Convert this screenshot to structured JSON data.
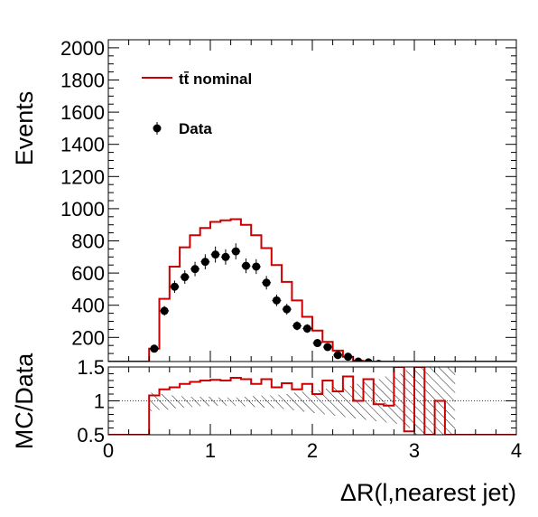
{
  "chart_data": [
    {
      "type": "histogram",
      "panel": "main",
      "xlabel": "ΔR(l,nearest jet)",
      "ylabel": "Events",
      "xlim": [
        0,
        4
      ],
      "ylim": [
        50,
        2050
      ],
      "yticks": [
        200,
        400,
        600,
        800,
        1000,
        1200,
        1400,
        1600,
        1800,
        2000
      ],
      "bin_edges": [
        0.0,
        0.4,
        0.5,
        0.6,
        0.7,
        0.8,
        0.9,
        1.0,
        1.1,
        1.2,
        1.3,
        1.4,
        1.5,
        1.6,
        1.7,
        1.8,
        1.9,
        2.0,
        2.1,
        2.2,
        2.3,
        2.4,
        2.5,
        2.6,
        2.7,
        2.8,
        2.9,
        3.0,
        3.1,
        3.2,
        3.3,
        3.4,
        4.0
      ],
      "legend_position": "top-left",
      "series": [
        {
          "name": "tt̄ nominal",
          "kind": "step",
          "color": "#cc0000",
          "values": [
            0,
            130,
            440,
            640,
            760,
            835,
            880,
            918,
            928,
            935,
            900,
            835,
            755,
            650,
            545,
            430,
            328,
            242,
            172,
            118,
            80,
            55,
            38,
            27,
            20,
            14,
            10,
            6,
            4,
            3,
            2,
            0
          ]
        },
        {
          "name": "Data",
          "kind": "points",
          "color": "#000000",
          "x": [
            0.45,
            0.55,
            0.65,
            0.75,
            0.85,
            0.95,
            1.05,
            1.15,
            1.25,
            1.35,
            1.45,
            1.55,
            1.65,
            1.75,
            1.85,
            1.95,
            2.05,
            2.15,
            2.25,
            2.35,
            2.45,
            2.55,
            2.65,
            2.75,
            2.85,
            2.95,
            3.05,
            3.25,
            3.35
          ],
          "y": [
            130,
            365,
            515,
            575,
            625,
            670,
            715,
            700,
            735,
            645,
            640,
            540,
            430,
            375,
            272,
            255,
            165,
            140,
            90,
            80,
            50,
            45,
            35,
            25,
            15,
            15,
            15,
            5,
            5
          ],
          "yerr": [
            20,
            30,
            38,
            42,
            45,
            47,
            50,
            48,
            50,
            46,
            46,
            42,
            36,
            34,
            28,
            27,
            20,
            18,
            14,
            13,
            10,
            10,
            9,
            8,
            6,
            6,
            6,
            4,
            4
          ]
        }
      ]
    },
    {
      "type": "ratio",
      "panel": "ratio",
      "xlabel": "ΔR(l,nearest jet)",
      "ylabel": "MC/Data",
      "xlim": [
        0,
        4
      ],
      "ylim": [
        0.5,
        1.5
      ],
      "xticks": [
        0,
        1,
        2,
        3,
        4
      ],
      "yticks": [
        0.5,
        1,
        1.5
      ],
      "yticklabels": [
        "0.5",
        "1",
        "1.5"
      ],
      "reference_line": 1,
      "bin_edges": [
        0.0,
        0.4,
        0.5,
        0.6,
        0.7,
        0.8,
        0.9,
        1.0,
        1.1,
        1.2,
        1.3,
        1.4,
        1.5,
        1.6,
        1.7,
        1.8,
        1.9,
        2.0,
        2.1,
        2.2,
        2.3,
        2.4,
        2.5,
        2.6,
        2.7,
        2.8,
        2.9,
        3.0,
        3.1,
        3.2,
        3.3,
        3.4,
        4.0
      ],
      "series": [
        {
          "name": "MC/Data",
          "kind": "step",
          "color": "#cc0000",
          "values": [
            0.5,
            1.08,
            1.17,
            1.2,
            1.25,
            1.28,
            1.3,
            1.31,
            1.3,
            1.34,
            1.32,
            1.25,
            1.32,
            1.2,
            1.26,
            1.17,
            1.25,
            1.1,
            1.3,
            1.14,
            1.36,
            1.0,
            1.32,
            0.95,
            0.93,
            1.5,
            0.55,
            1.5,
            0.5,
            1.0,
            0.5,
            0.5
          ]
        },
        {
          "name": "uncertainty",
          "kind": "band",
          "color": "#000000",
          "from": 0.4,
          "to": 3.4,
          "lower": [
            0.85,
            0.87,
            0.89,
            0.9,
            0.91,
            0.92,
            0.93,
            0.93,
            0.93,
            0.92,
            0.91,
            0.9,
            0.89,
            0.88,
            0.86,
            0.84,
            0.82,
            0.8,
            0.78,
            0.76,
            0.74,
            0.72,
            0.7,
            0.68,
            0.66,
            0.6,
            0.5,
            0.5,
            0.5,
            0.5
          ],
          "upper": [
            1.12,
            1.1,
            1.08,
            1.07,
            1.06,
            1.06,
            1.05,
            1.05,
            1.05,
            1.06,
            1.07,
            1.08,
            1.09,
            1.1,
            1.12,
            1.14,
            1.16,
            1.18,
            1.2,
            1.22,
            1.25,
            1.28,
            1.32,
            1.36,
            1.4,
            1.45,
            1.5,
            1.5,
            1.5,
            1.5
          ]
        }
      ]
    }
  ]
}
